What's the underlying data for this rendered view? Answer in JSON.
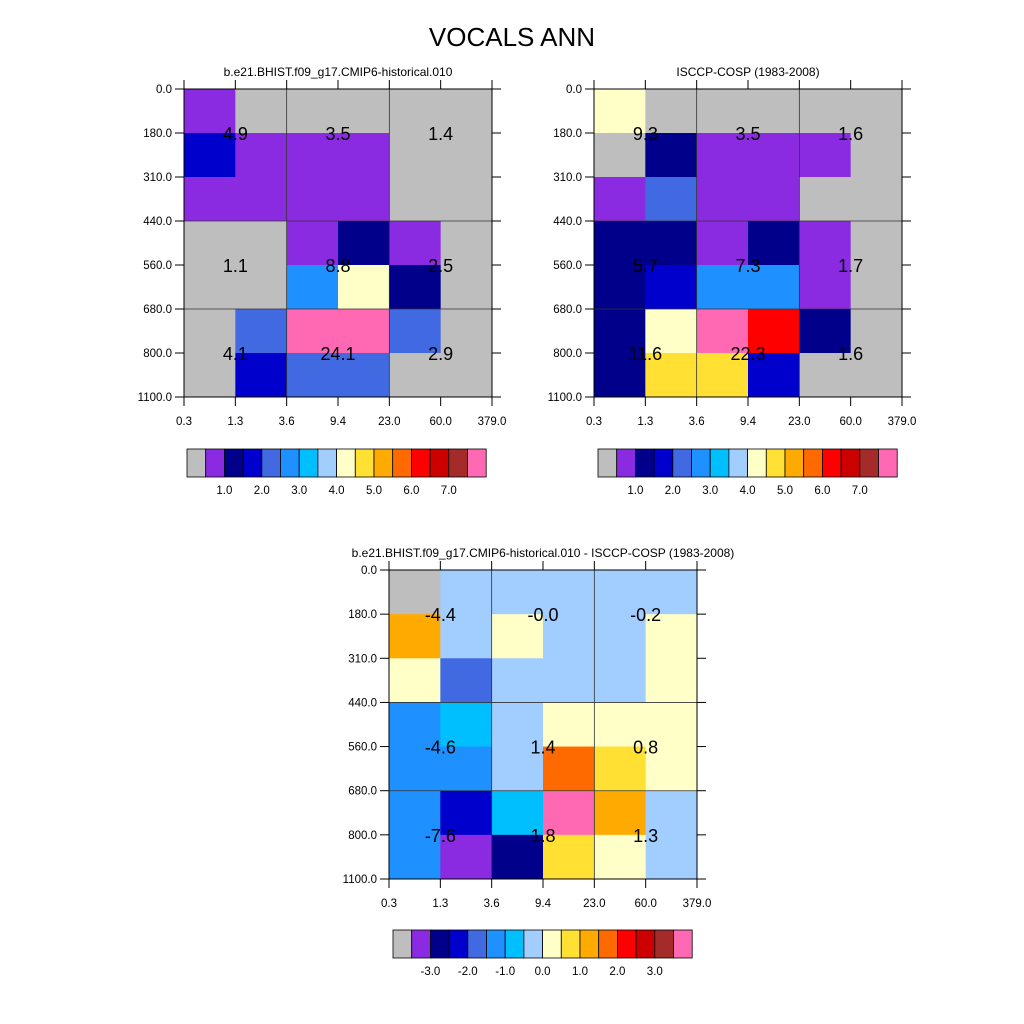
{
  "title": "VOCALS ANN",
  "chart_data": [
    {
      "type": "heatmap",
      "title": "b.e21.BHIST.f09_g17.CMIP6-historical.010",
      "x_ticks": [
        "0.3",
        "1.3",
        "3.6",
        "9.4",
        "23.0",
        "60.0",
        "379.0"
      ],
      "y_ticks": [
        "0.0",
        "180.0",
        "310.0",
        "440.0",
        "560.0",
        "680.0",
        "800.0",
        "1100.0"
      ],
      "levels": [
        1.0,
        1.5,
        2.0,
        2.5,
        3.0,
        3.5,
        4.0,
        4.5,
        5.0,
        5.5,
        6.0,
        6.5,
        7.0,
        7.5
      ],
      "colorbar_labels": [
        "1.0",
        "2.0",
        "3.0",
        "4.0",
        "5.0",
        "6.0",
        "7.0"
      ],
      "colors": [
        "#bebebe",
        "#8a2be2",
        "#00008b",
        "#0000cd",
        "#4169e1",
        "#1e90ff",
        "#00bfff",
        "#a2cdff",
        "#ffffc8",
        "#ffe033",
        "#ffaa00",
        "#ff6a00",
        "#ff0000",
        "#cd0000",
        "#a52a2a",
        "#ff69b4"
      ],
      "cell_bins": [
        [
          1,
          0,
          0,
          0,
          0,
          0
        ],
        [
          3,
          1,
          1,
          1,
          0,
          0
        ],
        [
          1,
          1,
          1,
          1,
          0,
          0
        ],
        [
          0,
          0,
          1,
          2,
          1,
          0
        ],
        [
          0,
          0,
          5,
          8,
          2,
          0
        ],
        [
          0,
          4,
          15,
          15,
          4,
          0
        ],
        [
          0,
          3,
          4,
          4,
          0,
          0
        ]
      ],
      "group_values": [
        [
          "4.9",
          "3.5",
          "1.4"
        ],
        [
          "1.1",
          "8.8",
          "2.5"
        ],
        [
          "4.1",
          "24.1",
          "2.9"
        ]
      ]
    },
    {
      "type": "heatmap",
      "title": "ISCCP-COSP (1983-2008)",
      "x_ticks": [
        "0.3",
        "1.3",
        "3.6",
        "9.4",
        "23.0",
        "60.0",
        "379.0"
      ],
      "y_ticks": [
        "0.0",
        "180.0",
        "310.0",
        "440.0",
        "560.0",
        "680.0",
        "800.0",
        "1100.0"
      ],
      "levels": [
        1.0,
        1.5,
        2.0,
        2.5,
        3.0,
        3.5,
        4.0,
        4.5,
        5.0,
        5.5,
        6.0,
        6.5,
        7.0,
        7.5
      ],
      "colorbar_labels": [
        "1.0",
        "2.0",
        "3.0",
        "4.0",
        "5.0",
        "6.0",
        "7.0"
      ],
      "colors": [
        "#bebebe",
        "#8a2be2",
        "#00008b",
        "#0000cd",
        "#4169e1",
        "#1e90ff",
        "#00bfff",
        "#a2cdff",
        "#ffffc8",
        "#ffe033",
        "#ffaa00",
        "#ff6a00",
        "#ff0000",
        "#cd0000",
        "#a52a2a",
        "#ff69b4"
      ],
      "cell_bins": [
        [
          8,
          0,
          0,
          0,
          0,
          0
        ],
        [
          0,
          2,
          1,
          1,
          1,
          0
        ],
        [
          1,
          4,
          1,
          1,
          0,
          0
        ],
        [
          2,
          2,
          1,
          2,
          1,
          0
        ],
        [
          2,
          3,
          5,
          5,
          1,
          0
        ],
        [
          2,
          8,
          15,
          12,
          2,
          0
        ],
        [
          2,
          9,
          9,
          3,
          0,
          0
        ]
      ],
      "group_values": [
        [
          "9.3",
          "3.5",
          "1.6"
        ],
        [
          "5.7",
          "7.3",
          "1.7"
        ],
        [
          "11.6",
          "22.3",
          "1.6"
        ]
      ]
    },
    {
      "type": "heatmap",
      "title": "b.e21.BHIST.f09_g17.CMIP6-historical.010 - ISCCP-COSP (1983-2008)",
      "x_ticks": [
        "0.3",
        "1.3",
        "3.6",
        "9.4",
        "23.0",
        "60.0",
        "379.0"
      ],
      "y_ticks": [
        "0.0",
        "180.0",
        "310.0",
        "440.0",
        "560.0",
        "680.0",
        "800.0",
        "1100.0"
      ],
      "levels": [
        -3.5,
        -3.0,
        -2.5,
        -2.0,
        -1.5,
        -1.0,
        -0.5,
        0.0,
        0.5,
        1.0,
        1.5,
        2.0,
        2.5,
        3.0
      ],
      "colorbar_labels": [
        "-3.0",
        "-2.0",
        "-1.0",
        "0.0",
        "1.0",
        "2.0",
        "3.0"
      ],
      "colors": [
        "#bebebe",
        "#8a2be2",
        "#00008b",
        "#0000cd",
        "#4169e1",
        "#1e90ff",
        "#00bfff",
        "#a2cdff",
        "#ffffc8",
        "#ffe033",
        "#ffaa00",
        "#ff6a00",
        "#ff0000",
        "#cd0000",
        "#a52a2a",
        "#ff69b4"
      ],
      "cell_bins": [
        [
          0,
          7,
          7,
          7,
          7,
          7
        ],
        [
          10,
          7,
          8,
          7,
          7,
          8
        ],
        [
          8,
          4,
          7,
          7,
          7,
          8
        ],
        [
          5,
          6,
          7,
          8,
          8,
          8
        ],
        [
          5,
          5,
          7,
          11,
          9,
          8
        ],
        [
          5,
          3,
          6,
          15,
          10,
          7
        ],
        [
          5,
          1,
          2,
          9,
          8,
          7
        ]
      ],
      "group_values": [
        [
          "-4.4",
          "-0.0",
          "-0.2"
        ],
        [
          "-4.6",
          "1.4",
          "0.8"
        ],
        [
          "-7.6",
          "1.8",
          "1.3"
        ]
      ]
    }
  ]
}
